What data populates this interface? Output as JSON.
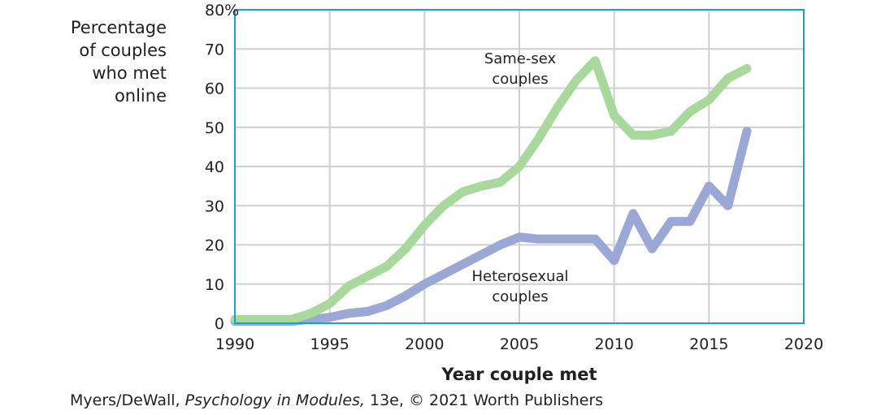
{
  "chart_data": {
    "type": "line",
    "ylabel": "Percentage of couples who met online",
    "ylabel_lines": [
      "Percentage",
      "of couples",
      "who met",
      "online"
    ],
    "xlabel": "Year couple met",
    "xlim": [
      1990,
      2020
    ],
    "ylim": [
      0,
      80
    ],
    "xticks": [
      "1990",
      "1995",
      "2000",
      "2005",
      "2010",
      "2015",
      "2020"
    ],
    "yticks": [
      "0",
      "10",
      "20",
      "30",
      "40",
      "50",
      "60",
      "70",
      "80%"
    ],
    "grid": true,
    "x": [
      1990,
      1991,
      1992,
      1993,
      1994,
      1995,
      1996,
      1997,
      1998,
      1999,
      2000,
      2001,
      2002,
      2003,
      2004,
      2005,
      2006,
      2007,
      2008,
      2009,
      2010,
      2011,
      2012,
      2013,
      2014,
      2015,
      2016,
      2017
    ],
    "series": [
      {
        "name": "Same-sex couples",
        "label_lines": [
          "Same-sex",
          "couples"
        ],
        "color": "#a9d89c",
        "values": [
          1,
          1,
          1,
          1,
          2.5,
          5,
          9.5,
          12,
          14.5,
          19,
          25,
          30,
          33.5,
          35,
          36,
          40,
          47,
          55,
          62,
          67,
          53,
          48,
          48,
          49,
          54,
          57,
          62.5,
          65
        ]
      },
      {
        "name": "Heterosexual couples",
        "label_lines": [
          "Heterosexual",
          "couples"
        ],
        "color": "#9ba7d5",
        "values": [
          0.5,
          0.5,
          0.5,
          0.5,
          1,
          1.5,
          2.5,
          3,
          4.5,
          7,
          10,
          12.5,
          15,
          17.5,
          20,
          22,
          21.5,
          21.5,
          21.5,
          21.5,
          16,
          28,
          19,
          26,
          26,
          35,
          30,
          49
        ]
      }
    ],
    "colors": {
      "frame": "#1a9ed6",
      "grid": "#cfcfcf"
    }
  },
  "credit": {
    "authors": "Myers/DeWall, ",
    "title": "Psychology in Modules,",
    "rest": " 13e, © 2021 Worth Publishers"
  }
}
